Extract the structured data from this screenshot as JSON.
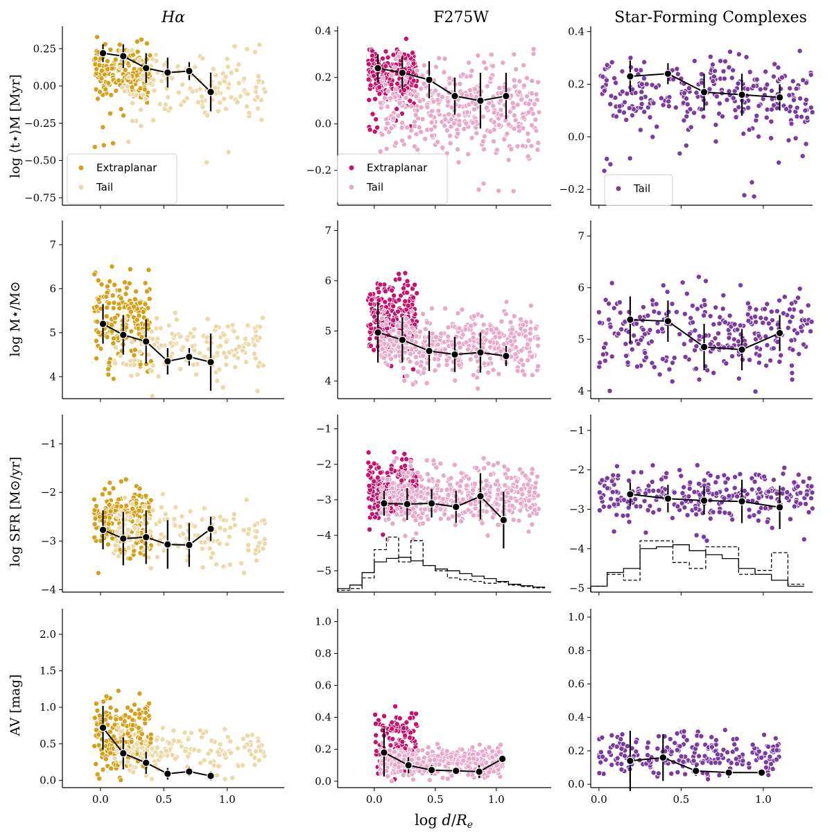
{
  "figure": {
    "xlabel": "log d/R_e",
    "xlabel_italic_d": "d",
    "xlabel_re": "R",
    "xlabel_re_sub": "e",
    "xlabel_prefix": "log "
  },
  "columns": [
    {
      "title": "Hα",
      "title_main": "H",
      "title_greek": "α"
    },
    {
      "title": "F275W"
    },
    {
      "title": "Star-Forming Complexes"
    }
  ],
  "rows": [
    {
      "ylabel": "log ⟨t⋆⟩M [Myr]"
    },
    {
      "ylabel": "log M⋆/M⊙"
    },
    {
      "ylabel": "log SFR [M⊙/yr]"
    },
    {
      "ylabel": "AV [mag]"
    }
  ],
  "colors": {
    "halpha_extraplanar": "#d4a017",
    "halpha_tail": "#ecd9a8",
    "f275w_extraplanar": "#c8106e",
    "f275w_tail": "#e7a9cb",
    "sfc_tail": "#7b3aa0",
    "median": "#000000"
  },
  "legends": [
    {
      "panel": "0-0",
      "entries": [
        {
          "label": "Extraplanar",
          "color": "#d4a017"
        },
        {
          "label": "Tail",
          "color": "#ecd9a8"
        }
      ]
    },
    {
      "panel": "0-1",
      "entries": [
        {
          "label": "Extraplanar",
          "color": "#c8106e"
        },
        {
          "label": "Tail",
          "color": "#e7a9cb"
        }
      ]
    },
    {
      "panel": "0-2",
      "entries": [
        {
          "label": "Tail",
          "color": "#7b3aa0"
        }
      ]
    }
  ],
  "chart_data": [
    {
      "type": "scatter",
      "panel": "0-0",
      "xlim": [
        -0.3,
        1.45
      ],
      "ylim": [
        -0.8,
        0.4
      ],
      "xticks": [
        0.0,
        0.5,
        1.0
      ],
      "yticks": [
        -0.75,
        -0.5,
        -0.25,
        0.0,
        0.25
      ],
      "ytick_labels": [
        "−0.75",
        "−0.50",
        "−0.25",
        "0.00",
        "0.25"
      ],
      "median_x": [
        0.02,
        0.18,
        0.36,
        0.53,
        0.7,
        0.87
      ],
      "median_y": [
        0.22,
        0.2,
        0.12,
        0.09,
        0.1,
        -0.04
      ],
      "median_err": [
        0.06,
        0.08,
        0.1,
        0.1,
        0.06,
        0.13
      ],
      "cloud": {
        "groups": [
          {
            "color": "#d4a017",
            "n": 180,
            "x": [
              -0.05,
              0.4
            ],
            "y": [
              -0.15,
              0.33
            ],
            "ymin": -0.45
          },
          {
            "color": "#ecd9a8",
            "n": 150,
            "x": [
              0.1,
              1.3
            ],
            "y": [
              -0.35,
              0.32
            ],
            "ymin": -0.72
          }
        ]
      }
    },
    {
      "type": "scatter",
      "panel": "0-1",
      "xlim": [
        -0.3,
        1.45
      ],
      "ylim": [
        -0.35,
        0.42
      ],
      "xticks": [
        0.0,
        0.5,
        1.0
      ],
      "yticks": [
        -0.2,
        0.0,
        0.2,
        0.4
      ],
      "ytick_labels": [
        "−0.2",
        "0.0",
        "0.2",
        "0.4"
      ],
      "median_x": [
        0.03,
        0.23,
        0.45,
        0.66,
        0.87,
        1.08
      ],
      "median_y": [
        0.24,
        0.22,
        0.19,
        0.12,
        0.1,
        0.12
      ],
      "median_err": [
        0.06,
        0.07,
        0.08,
        0.08,
        0.12,
        0.1
      ],
      "cloud": {
        "groups": [
          {
            "color": "#c8106e",
            "n": 220,
            "x": [
              -0.05,
              0.35
            ],
            "y": [
              0.05,
              0.37
            ],
            "ymin": -0.05
          },
          {
            "color": "#e7a9cb",
            "n": 420,
            "x": [
              0.05,
              1.35
            ],
            "y": [
              -0.22,
              0.34
            ],
            "ymin": -0.34
          }
        ]
      }
    },
    {
      "type": "scatter",
      "panel": "0-2",
      "xlim": [
        -0.05,
        1.3
      ],
      "ylim": [
        -0.26,
        0.42
      ],
      "xticks": [
        0.0,
        0.5,
        1.0
      ],
      "yticks": [
        -0.2,
        0.0,
        0.2,
        0.4
      ],
      "ytick_labels": [
        "−0.2",
        "0.0",
        "0.2",
        "0.4"
      ],
      "median_x": [
        0.19,
        0.42,
        0.64,
        0.87,
        1.1
      ],
      "median_y": [
        0.23,
        0.24,
        0.17,
        0.16,
        0.15
      ],
      "median_err": [
        0.06,
        0.04,
        0.07,
        0.08,
        0.05
      ],
      "cloud": {
        "groups": [
          {
            "color": "#7b3aa0",
            "n": 280,
            "x": [
              0.0,
              1.3
            ],
            "y": [
              -0.05,
              0.36
            ],
            "ymin": -0.25
          }
        ]
      }
    },
    {
      "type": "scatter",
      "panel": "1-0",
      "xlim": [
        -0.3,
        1.45
      ],
      "ylim": [
        3.5,
        7.55
      ],
      "xticks": [
        0.0,
        0.5,
        1.0
      ],
      "yticks": [
        4,
        5,
        6,
        7
      ],
      "ytick_labels": [
        "4",
        "5",
        "6",
        "7"
      ],
      "median_x": [
        0.02,
        0.18,
        0.36,
        0.53,
        0.7,
        0.87
      ],
      "median_y": [
        5.2,
        4.95,
        4.8,
        4.35,
        4.45,
        4.33
      ],
      "median_err": [
        0.45,
        0.45,
        0.5,
        0.3,
        0.2,
        0.65
      ],
      "cloud": {
        "groups": [
          {
            "color": "#d4a017",
            "n": 180,
            "x": [
              -0.05,
              0.4
            ],
            "y": [
              3.9,
              6.6
            ],
            "ymin": 3.6
          },
          {
            "color": "#ecd9a8",
            "n": 150,
            "x": [
              0.1,
              1.3
            ],
            "y": [
              3.7,
              5.6
            ],
            "ymin": 3.55
          }
        ]
      }
    },
    {
      "type": "scatter",
      "panel": "1-1",
      "xlim": [
        -0.3,
        1.45
      ],
      "ylim": [
        3.65,
        7.2
      ],
      "xticks": [
        0.0,
        0.5,
        1.0
      ],
      "yticks": [
        4,
        5,
        6,
        7
      ],
      "ytick_labels": [
        "4",
        "5",
        "6",
        "7"
      ],
      "median_x": [
        0.03,
        0.23,
        0.45,
        0.66,
        0.87,
        1.08
      ],
      "median_y": [
        4.97,
        4.82,
        4.6,
        4.53,
        4.57,
        4.5
      ],
      "median_err": [
        0.6,
        0.45,
        0.4,
        0.35,
        0.4,
        0.2
      ],
      "cloud": {
        "groups": [
          {
            "color": "#c8106e",
            "n": 220,
            "x": [
              -0.05,
              0.35
            ],
            "y": [
              4.3,
              6.3
            ],
            "ymin": 4.0
          },
          {
            "color": "#e7a9cb",
            "n": 420,
            "x": [
              0.05,
              1.35
            ],
            "y": [
              3.9,
              5.6
            ],
            "ymin": 3.8
          }
        ]
      }
    },
    {
      "type": "scatter",
      "panel": "1-2",
      "xlim": [
        -0.05,
        1.3
      ],
      "ylim": [
        3.85,
        7.3
      ],
      "xticks": [
        0.0,
        0.5,
        1.0
      ],
      "yticks": [
        4,
        5,
        6,
        7
      ],
      "ytick_labels": [
        "4",
        "5",
        "6",
        "7"
      ],
      "median_x": [
        0.19,
        0.42,
        0.64,
        0.87,
        1.1
      ],
      "median_y": [
        5.38,
        5.35,
        4.85,
        4.8,
        5.12
      ],
      "median_err": [
        0.45,
        0.4,
        0.45,
        0.4,
        0.35
      ],
      "cloud": {
        "groups": [
          {
            "color": "#7b3aa0",
            "n": 280,
            "x": [
              0.0,
              1.3
            ],
            "y": [
              4.0,
              6.3
            ],
            "ymin": 3.9
          }
        ]
      }
    },
    {
      "type": "scatter",
      "panel": "2-0",
      "xlim": [
        -0.3,
        1.45
      ],
      "ylim": [
        -4.05,
        -0.4
      ],
      "xticks": [
        0.0,
        0.5,
        1.0
      ],
      "yticks": [
        -4,
        -3,
        -2,
        -1
      ],
      "ytick_labels": [
        "−4",
        "−3",
        "−2",
        "−1"
      ],
      "median_x": [
        0.02,
        0.18,
        0.36,
        0.53,
        0.7,
        0.87
      ],
      "median_y": [
        -2.77,
        -2.95,
        -2.92,
        -3.07,
        -3.08,
        -2.75
      ],
      "median_err": [
        0.4,
        0.55,
        0.55,
        0.5,
        0.45,
        0.25
      ],
      "cloud": {
        "groups": [
          {
            "color": "#d4a017",
            "n": 180,
            "x": [
              -0.05,
              0.4
            ],
            "y": [
              -3.6,
              -1.5
            ],
            "ymin": -3.7
          },
          {
            "color": "#ecd9a8",
            "n": 150,
            "x": [
              0.1,
              1.3
            ],
            "y": [
              -3.8,
              -2.0
            ],
            "ymin": -3.9
          }
        ]
      }
    },
    {
      "type": "scatter_hist",
      "panel": "2-1",
      "xlim": [
        -0.3,
        1.45
      ],
      "ylim": [
        -5.6,
        -0.6
      ],
      "xticks": [
        0.0,
        0.5,
        1.0
      ],
      "yticks": [
        -5,
        -4,
        -3,
        -2,
        -1
      ],
      "ytick_labels": [
        "−5",
        "−4",
        "−3",
        "−2",
        "−1"
      ],
      "median_x": [
        0.08,
        0.27,
        0.47,
        0.67,
        0.87,
        1.06
      ],
      "median_y": [
        -3.1,
        -3.12,
        -3.1,
        -3.2,
        -2.9,
        -3.57
      ],
      "median_err": [
        0.35,
        0.45,
        0.4,
        0.45,
        0.65,
        0.8
      ],
      "cloud": {
        "groups": [
          {
            "color": "#c8106e",
            "n": 220,
            "x": [
              -0.05,
              0.35
            ],
            "y": [
              -3.9,
              -1.5
            ],
            "ymin": -4.0
          },
          {
            "color": "#e7a9cb",
            "n": 420,
            "x": [
              0.05,
              1.35
            ],
            "y": [
              -4.0,
              -1.8
            ],
            "ymin": -4.3
          }
        ]
      },
      "hist_bins": [
        -0.3,
        -0.2,
        -0.1,
        0.0,
        0.1,
        0.2,
        0.3,
        0.4,
        0.5,
        0.6,
        0.7,
        0.8,
        0.9,
        1.0,
        1.1,
        1.2,
        1.3,
        1.4
      ],
      "hist_solid": [
        -5.5,
        -5.4,
        -5.05,
        -4.75,
        -4.65,
        -4.62,
        -4.72,
        -4.85,
        -4.95,
        -5.0,
        -5.08,
        -5.15,
        -5.22,
        -5.3,
        -5.38,
        -5.42,
        -5.46
      ],
      "hist_dashed": [
        -5.55,
        -5.5,
        -5.2,
        -4.4,
        -4.05,
        -4.75,
        -4.15,
        -4.85,
        -5.0,
        -5.2,
        -5.25,
        -5.3,
        -5.35,
        -5.32,
        -5.4,
        -5.44,
        -5.48
      ]
    },
    {
      "type": "scatter_hist",
      "panel": "2-2",
      "xlim": [
        -0.05,
        1.3
      ],
      "ylim": [
        -5.1,
        -0.6
      ],
      "xticks": [
        0.0,
        0.5,
        1.0
      ],
      "yticks": [
        -5,
        -4,
        -3,
        -2,
        -1
      ],
      "ytick_labels": [
        "−5",
        "−4",
        "−3",
        "−2",
        "−1"
      ],
      "median_x": [
        0.19,
        0.42,
        0.64,
        0.87,
        1.1
      ],
      "median_y": [
        -2.62,
        -2.73,
        -2.78,
        -2.8,
        -2.95
      ],
      "median_err": [
        0.3,
        0.35,
        0.35,
        0.55,
        0.55
      ],
      "cloud": {
        "groups": [
          {
            "color": "#7b3aa0",
            "n": 280,
            "x": [
              0.0,
              1.3
            ],
            "y": [
              -3.5,
              -1.8
            ],
            "ymin": -3.8
          }
        ]
      },
      "hist_bins": [
        -0.05,
        0.05,
        0.15,
        0.25,
        0.35,
        0.45,
        0.55,
        0.65,
        0.75,
        0.85,
        0.95,
        1.05,
        1.15,
        1.25
      ],
      "hist_solid": [
        -4.95,
        -4.6,
        -4.5,
        -4.0,
        -3.95,
        -3.9,
        -4.05,
        -4.15,
        -4.25,
        -4.5,
        -4.65,
        -4.8,
        -4.95
      ],
      "hist_dashed": [
        -4.95,
        -4.65,
        -4.8,
        -3.8,
        -3.8,
        -4.35,
        -4.5,
        -3.95,
        -3.95,
        -4.65,
        -4.55,
        -4.1,
        -4.9
      ]
    },
    {
      "type": "scatter",
      "panel": "3-0",
      "xlim": [
        -0.3,
        1.45
      ],
      "ylim": [
        -0.1,
        2.35
      ],
      "xticks": [
        0.0,
        0.5,
        1.0
      ],
      "yticks": [
        0.0,
        0.5,
        1.0,
        1.5,
        2.0
      ],
      "ytick_labels": [
        "0.0",
        "0.5",
        "1.0",
        "1.5",
        "2.0"
      ],
      "median_x": [
        0.02,
        0.18,
        0.36,
        0.53,
        0.7,
        0.87
      ],
      "median_y": [
        0.72,
        0.37,
        0.24,
        0.09,
        0.12,
        0.06
      ],
      "median_err": [
        0.3,
        0.22,
        0.15,
        0.08,
        0.06,
        0.06
      ],
      "cloud": {
        "groups": [
          {
            "color": "#d4a017",
            "n": 180,
            "x": [
              -0.05,
              0.4
            ],
            "y": [
              0.0,
              1.3
            ],
            "ymin": 0.0
          },
          {
            "color": "#ecd9a8",
            "n": 150,
            "x": [
              0.1,
              1.3
            ],
            "y": [
              0.0,
              0.8
            ],
            "ymin": 0.0
          }
        ]
      }
    },
    {
      "type": "scatter",
      "panel": "3-1",
      "xlim": [
        -0.3,
        1.45
      ],
      "ylim": [
        -0.04,
        1.08
      ],
      "xticks": [
        0.0,
        0.5,
        1.0
      ],
      "yticks": [
        0.0,
        0.2,
        0.4,
        0.6,
        0.8,
        1.0
      ],
      "ytick_labels": [
        "0.0",
        "0.2",
        "0.4",
        "0.6",
        "0.8",
        "1.0"
      ],
      "median_x": [
        0.08,
        0.28,
        0.47,
        0.67,
        0.86,
        1.05
      ],
      "median_y": [
        0.18,
        0.1,
        0.07,
        0.065,
        0.06,
        0.14
      ],
      "median_err": [
        0.15,
        0.05,
        0.03,
        0.02,
        0.04,
        0.02
      ],
      "cloud": {
        "groups": [
          {
            "color": "#c8106e",
            "n": 120,
            "x": [
              0.0,
              0.35
            ],
            "y": [
              0.0,
              0.5
            ],
            "ymin": 0.0
          },
          {
            "color": "#e7a9cb",
            "n": 380,
            "x": [
              0.05,
              1.05
            ],
            "y": [
              0.0,
              0.25
            ],
            "ymin": 0.0
          }
        ]
      }
    },
    {
      "type": "scatter",
      "panel": "3-2",
      "xlim": [
        -0.05,
        1.3
      ],
      "ylim": [
        -0.02,
        1.05
      ],
      "xticks": [
        0.0,
        0.5,
        1.0
      ],
      "yticks": [
        0.0,
        0.2,
        0.4,
        0.6,
        0.8,
        1.0
      ],
      "ytick_labels": [
        "0.0",
        "0.2",
        "0.4",
        "0.6",
        "0.8",
        "1.0"
      ],
      "median_x": [
        0.19,
        0.39,
        0.59,
        0.79,
        0.99
      ],
      "median_y": [
        0.14,
        0.16,
        0.08,
        0.07,
        0.07
      ],
      "median_err": [
        0.18,
        0.14,
        0.03,
        0.03,
        0.02
      ],
      "cloud": {
        "groups": [
          {
            "color": "#7b3aa0",
            "n": 220,
            "x": [
              0.0,
              1.1
            ],
            "y": [
              0.0,
              0.35
            ],
            "ymin": 0.0
          }
        ]
      }
    }
  ]
}
